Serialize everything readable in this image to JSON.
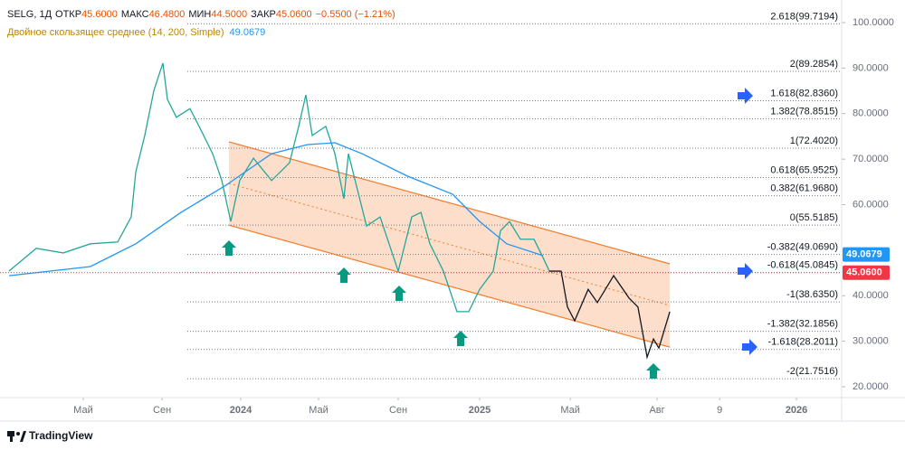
{
  "chart_data": {
    "type": "line",
    "title": "SELG, 1Д",
    "ohlc": [
      {
        "key": "ОТКР",
        "text": "45.6000"
      },
      {
        "key": "МАКС",
        "text": "46.4800"
      },
      {
        "key": "МИН",
        "text": "44.5000"
      },
      {
        "key": "ЗАКР",
        "text": "45.0600"
      }
    ],
    "change": "−0.5500 (−1.21%)",
    "indicator": {
      "name": "Двойное скользящее среднее (14, 200, Simple)",
      "value": 49.0679
    },
    "xlim": [
      -0.09,
      42.18
    ],
    "ylim": [
      17.62,
      104.96
    ],
    "xticks": [
      {
        "value": 4.09,
        "label": "Май"
      },
      {
        "value": 8.05,
        "label": "Сен"
      },
      {
        "value": 12,
        "label": "2024"
      },
      {
        "value": 15.91,
        "label": "Май"
      },
      {
        "value": 19.91,
        "label": "Сен"
      },
      {
        "value": 24,
        "label": "2025"
      },
      {
        "value": 28.55,
        "label": "Май"
      },
      {
        "value": 32.91,
        "label": "Авг"
      },
      {
        "value": 36.05,
        "label": "9"
      },
      {
        "value": 39.91,
        "label": "2026"
      }
    ],
    "yticks": [
      {
        "value": 20,
        "label": "20.0000"
      },
      {
        "value": 30,
        "label": "30.0000"
      },
      {
        "value": 40,
        "label": "40.0000"
      },
      {
        "value": 60,
        "label": "60.0000"
      },
      {
        "value": 70,
        "label": "70.0000"
      },
      {
        "value": 80,
        "label": "80.0000"
      },
      {
        "value": 90,
        "label": "90.0000"
      },
      {
        "value": 100,
        "label": "100.0000"
      }
    ],
    "series": [
      {
        "color": "#26a69a",
        "x": [
          0.36,
          1.73,
          3.09,
          4.45,
          5.82,
          6.5,
          6.73,
          7.18,
          7.64,
          8.09,
          8.32,
          8.77,
          9.45,
          9.91,
          10.59,
          11.05,
          11.5,
          11.95,
          12.64,
          13.55,
          14.45,
          14.91,
          15.27,
          15.59,
          16.27,
          16.73,
          17.18,
          17.41,
          17.86,
          18.32,
          19,
          19.91,
          20.59,
          21.05,
          21.5,
          22.18,
          22.86,
          23.45,
          24,
          24.68,
          25.05,
          25.5,
          26.05,
          26.73,
          27.18,
          27.5
        ],
        "values": [
          45.4,
          50.4,
          49.4,
          51.4,
          51.8,
          57.3,
          67.2,
          75.2,
          85.1,
          91.1,
          83.1,
          79.2,
          81.1,
          77.2,
          71.2,
          65.3,
          56.3,
          65.3,
          70.2,
          65.3,
          69.2,
          77.2,
          84.1,
          75.2,
          77.2,
          71.2,
          61.3,
          71.2,
          63.3,
          55.3,
          57.3,
          45.4,
          57.3,
          58.3,
          51.4,
          45.4,
          36.5,
          36.5,
          41.4,
          45.4,
          54.3,
          56.3,
          52.4,
          52.4,
          48.4,
          45.4
        ]
      },
      {
        "color": "#2196f3",
        "x": [
          0.36,
          4.45,
          6.73,
          9,
          11.27,
          13.55,
          15.36,
          16.73,
          18.09,
          20.36,
          22.64,
          24,
          25.36,
          27.18
        ],
        "values": [
          44.4,
          46.4,
          51.4,
          58.3,
          64.3,
          71.2,
          73.2,
          73.6,
          71.2,
          66.3,
          62.3,
          56.3,
          51.4,
          48.8
        ]
      },
      {
        "color": "#131722",
        "x": [
          27.5,
          28.09,
          28.41,
          28.77,
          29.45,
          29.91,
          30.73,
          31.5,
          31.95,
          32.41,
          32.73,
          33,
          33.55
        ],
        "values": [
          45.4,
          45.4,
          37.5,
          34.5,
          41.4,
          38.5,
          44.4,
          39.5,
          37.5,
          26.5,
          30.5,
          28.5,
          36.5
        ]
      }
    ],
    "channel": {
      "color": "#f57c2a",
      "upper": {
        "x": [
          11.41,
          33.55
        ],
        "values": [
          73.8,
          47.0
        ]
      },
      "lower": {
        "x": [
          11.41,
          33.55
        ],
        "values": [
          55.5,
          28.7
        ]
      }
    },
    "fib_levels": [
      {
        "value": 99.7194,
        "label": "2.618(99.7194)"
      },
      {
        "value": 89.2854,
        "label": "2(89.2854)"
      },
      {
        "value": 82.836,
        "label": "1.618(82.8360)"
      },
      {
        "value": 78.8515,
        "label": "1.382(78.8515)"
      },
      {
        "value": 72.402,
        "label": "1(72.4020)"
      },
      {
        "value": 65.9525,
        "label": "0.618(65.9525)"
      },
      {
        "value": 61.968,
        "label": "0.382(61.9680)"
      },
      {
        "value": 55.5185,
        "label": "0(55.5185)"
      },
      {
        "value": 49.069,
        "label": "-0.382(49.0690)"
      },
      {
        "value": 45.0845,
        "label": "-0.618(45.0845)"
      },
      {
        "value": 38.635,
        "label": "-1(38.6350)"
      },
      {
        "value": 32.1856,
        "label": "-1.382(32.1856)"
      },
      {
        "value": 28.2011,
        "label": "-1.618(28.2011)"
      },
      {
        "value": 21.7516,
        "label": "-2(21.7516)"
      }
    ],
    "last_price": {
      "value": 45.06,
      "label": "45.0600",
      "color": "#f23645"
    },
    "brand": "TradingView"
  }
}
